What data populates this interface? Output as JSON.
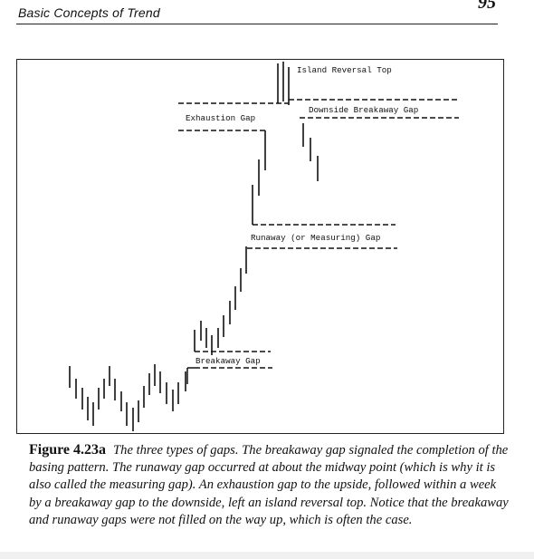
{
  "header": {
    "title": "Basic Concepts of Trend",
    "page_number": "95"
  },
  "figure": {
    "labels": {
      "island_reversal": "Island Reversal Top",
      "exhaustion": "Exhaustion Gap",
      "downside_breakaway": "Downside Breakaway Gap",
      "runaway": "Runaway (or Measuring) Gap",
      "breakaway": "Breakaway Gap"
    }
  },
  "caption": {
    "figure_label": "Figure 4.23a",
    "text": "The three types of gaps. The breakaway gap signaled the completion of the basing pattern. The runaway gap occurred at about the midway point (which is why it is also called the measuring gap). An exhaustion gap to the upside, followed within a week by a breakaway gap to the downside, left an island reversal top. Notice that the breakaway and runaway gaps were not filled on the way up, which is often the case."
  },
  "colors": {
    "ink": "#111111",
    "background": "#ffffff"
  }
}
